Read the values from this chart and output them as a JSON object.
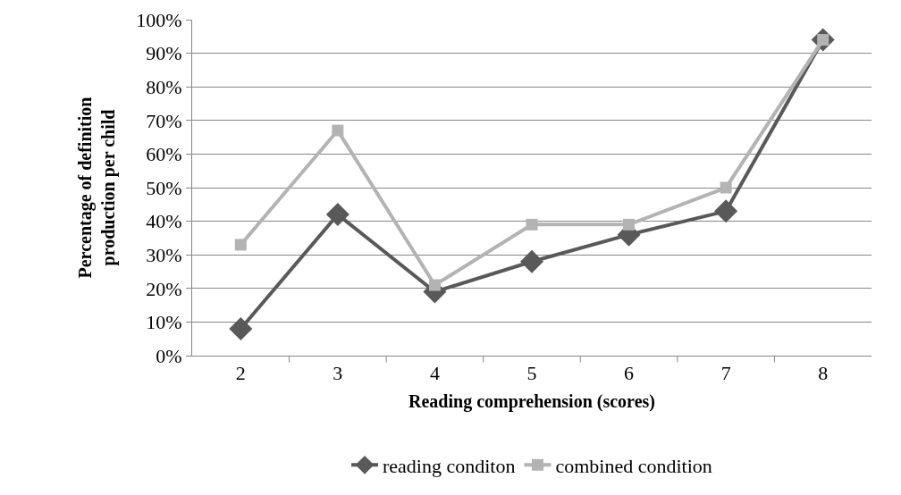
{
  "chart_data": {
    "type": "line",
    "xlabel": "Reading comprehension (scores)",
    "ylabel": "Percentage of definition production per child",
    "categories": [
      "2",
      "3",
      "4",
      "5",
      "6",
      "7",
      "8"
    ],
    "series": [
      {
        "name": "reading conditon",
        "color": "#595959",
        "marker": "diamond",
        "values": [
          8,
          42,
          19,
          28,
          36,
          43,
          94
        ]
      },
      {
        "name": "combined condition",
        "color": "#b3b3b3",
        "marker": "square",
        "values": [
          33,
          67,
          21,
          39,
          39,
          50,
          94
        ]
      }
    ],
    "ylim": [
      0,
      100
    ],
    "yticks": [
      {
        "value": 0,
        "label": "0%"
      },
      {
        "value": 10,
        "label": "10%"
      },
      {
        "value": 20,
        "label": "20%"
      },
      {
        "value": 30,
        "label": "30%"
      },
      {
        "value": 40,
        "label": "40%"
      },
      {
        "value": 50,
        "label": "50%"
      },
      {
        "value": 60,
        "label": "60%"
      },
      {
        "value": 70,
        "label": "70%"
      },
      {
        "value": 80,
        "label": "80%"
      },
      {
        "value": 90,
        "label": "90%"
      },
      {
        "value": 100,
        "label": "100%"
      }
    ],
    "grid": "y",
    "legend": "bottom",
    "line_style": "solid"
  }
}
